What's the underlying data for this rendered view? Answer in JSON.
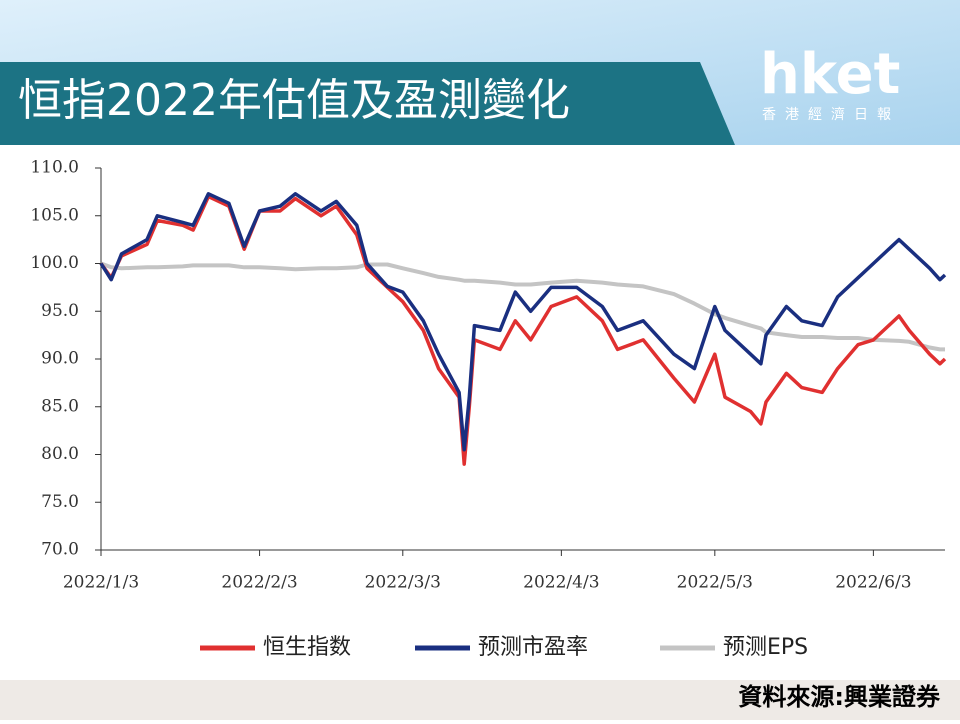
{
  "header": {
    "title": "恒指2022年估值及盈測變化",
    "logo": "hket",
    "logo_sub": "香港經濟日報"
  },
  "chart_data": {
    "type": "line",
    "x": [
      "2022-01-03",
      "2022-01-05",
      "2022-01-07",
      "2022-01-12",
      "2022-01-14",
      "2022-01-19",
      "2022-01-21",
      "2022-01-24",
      "2022-01-28",
      "2022-01-31",
      "2022-02-03",
      "2022-02-07",
      "2022-02-10",
      "2022-02-15",
      "2022-02-18",
      "2022-02-22",
      "2022-02-24",
      "2022-02-28",
      "2022-03-03",
      "2022-03-07",
      "2022-03-10",
      "2022-03-14",
      "2022-03-15",
      "2022-03-16",
      "2022-03-17",
      "2022-03-22",
      "2022-03-25",
      "2022-03-28",
      "2022-04-01",
      "2022-04-06",
      "2022-04-11",
      "2022-04-14",
      "2022-04-19",
      "2022-04-25",
      "2022-04-29",
      "2022-05-03",
      "2022-05-05",
      "2022-05-10",
      "2022-05-12",
      "2022-05-13",
      "2022-05-17",
      "2022-05-20",
      "2022-05-24",
      "2022-05-27",
      "2022-05-31",
      "2022-06-03",
      "2022-06-08",
      "2022-06-10",
      "2022-06-14",
      "2022-06-16",
      "2022-06-17"
    ],
    "series": [
      {
        "name": "恒生指数",
        "color": "#e03030",
        "values": [
          100,
          98.5,
          100.8,
          102,
          104.5,
          104,
          103.5,
          107,
          106,
          101.5,
          105.5,
          105.5,
          106.8,
          105,
          106,
          103,
          99.5,
          97.5,
          96,
          93,
          89,
          86,
          79,
          85,
          92,
          91,
          94,
          92,
          95.5,
          96.5,
          94,
          91,
          92,
          88,
          85.5,
          90.5,
          86,
          84.5,
          83.2,
          85.5,
          88.5,
          87,
          86.5,
          89,
          91.5,
          92,
          94.5,
          93,
          90.5,
          89.5,
          90
        ]
      },
      {
        "name": "预测市盈率",
        "color": "#1a2f80",
        "values": [
          100,
          98.3,
          101,
          102.5,
          105,
          104.3,
          104,
          107.3,
          106.3,
          101.8,
          105.5,
          106,
          107.3,
          105.5,
          106.5,
          104,
          100,
          97.6,
          97,
          94,
          90.5,
          86.5,
          80.5,
          86,
          93.5,
          93,
          97,
          95,
          97.5,
          97.5,
          95.5,
          93,
          94,
          90.5,
          89,
          95.5,
          93,
          90.5,
          89.5,
          92.5,
          95.5,
          94,
          93.5,
          96.5,
          98.5,
          100,
          102.5,
          101.5,
          99.5,
          98.3,
          98.8
        ]
      },
      {
        "name": "预测EPS",
        "color": "#c4c4c4",
        "values": [
          100,
          99.6,
          99.5,
          99.6,
          99.6,
          99.7,
          99.8,
          99.8,
          99.8,
          99.6,
          99.6,
          99.5,
          99.4,
          99.5,
          99.5,
          99.6,
          99.9,
          99.9,
          99.5,
          99,
          98.6,
          98.3,
          98.2,
          98.2,
          98.2,
          98,
          97.8,
          97.8,
          98,
          98.2,
          98,
          97.8,
          97.6,
          96.8,
          95.8,
          94.7,
          94.3,
          93.5,
          93.2,
          92.8,
          92.5,
          92.3,
          92.3,
          92.2,
          92.2,
          92,
          91.9,
          91.8,
          91.2,
          91,
          91
        ]
      }
    ],
    "xlim": [
      "2022-01-03",
      "2022-06-17"
    ],
    "xticks": [
      {
        "value": "2022-01-03",
        "label": "2022/1/3"
      },
      {
        "value": "2022-02-03",
        "label": "2022/2/3"
      },
      {
        "value": "2022-03-03",
        "label": "2022/3/3"
      },
      {
        "value": "2022-04-03",
        "label": "2022/4/3"
      },
      {
        "value": "2022-05-03",
        "label": "2022/5/3"
      },
      {
        "value": "2022-06-03",
        "label": "2022/6/3"
      }
    ],
    "ylim": [
      70,
      110
    ],
    "yticks": [
      {
        "value": 70,
        "label": "70.0"
      },
      {
        "value": 75,
        "label": "75.0"
      },
      {
        "value": 80,
        "label": "80.0"
      },
      {
        "value": 85,
        "label": "85.0"
      },
      {
        "value": 90,
        "label": "90.0"
      },
      {
        "value": 95,
        "label": "95.0"
      },
      {
        "value": 100,
        "label": "100.0"
      },
      {
        "value": 105,
        "label": "105.0"
      },
      {
        "value": 110,
        "label": "110.0"
      }
    ],
    "source": "資料來源:興業證券"
  }
}
